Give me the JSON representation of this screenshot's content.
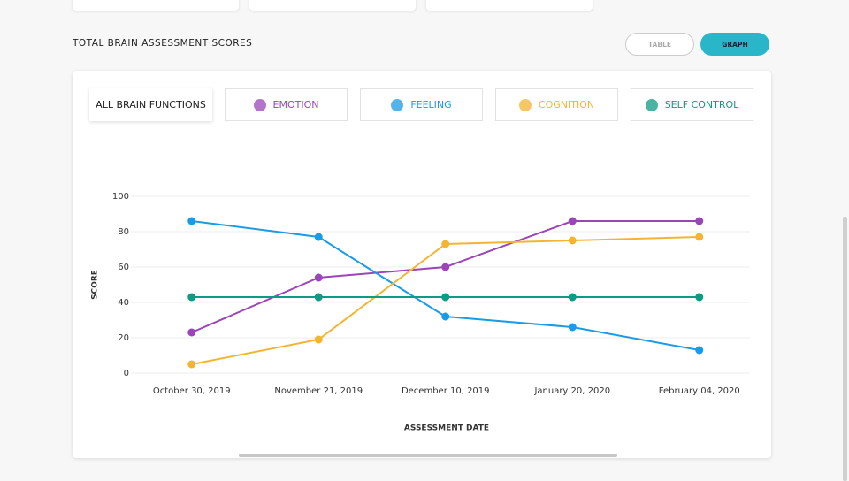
{
  "header": {
    "title": "TOTAL BRAIN ASSESSMENT SCORES",
    "buttons": [
      "TABLE",
      "GRAPH"
    ]
  },
  "tabs": {
    "all": "ALL BRAIN FUNCTIONS"
  },
  "chart_data": {
    "type": "line",
    "x_label": "ASSESSMENT DATE",
    "y_label": "SCORE",
    "categories": [
      "October 30, 2019",
      "November 21, 2019",
      "December 10, 2019",
      "January 20, 2020",
      "February 04, 2020"
    ],
    "series": [
      {
        "name": "EMOTION",
        "color": "#9b45b8",
        "values": [
          23,
          54,
          60,
          86,
          86
        ]
      },
      {
        "name": "FEELING",
        "color": "#1a9be6",
        "values": [
          86,
          77,
          32,
          26,
          13
        ]
      },
      {
        "name": "COGNITION",
        "color": "#f3b531",
        "values": [
          5,
          19,
          73,
          75,
          77
        ]
      },
      {
        "name": "SELF CONTROL",
        "color": "#0e9a83",
        "values": [
          43,
          43,
          43,
          43,
          43
        ]
      }
    ],
    "ylim": [
      0,
      100
    ],
    "yticks": [
      0,
      20,
      40,
      60,
      80,
      100
    ],
    "grid": true
  }
}
